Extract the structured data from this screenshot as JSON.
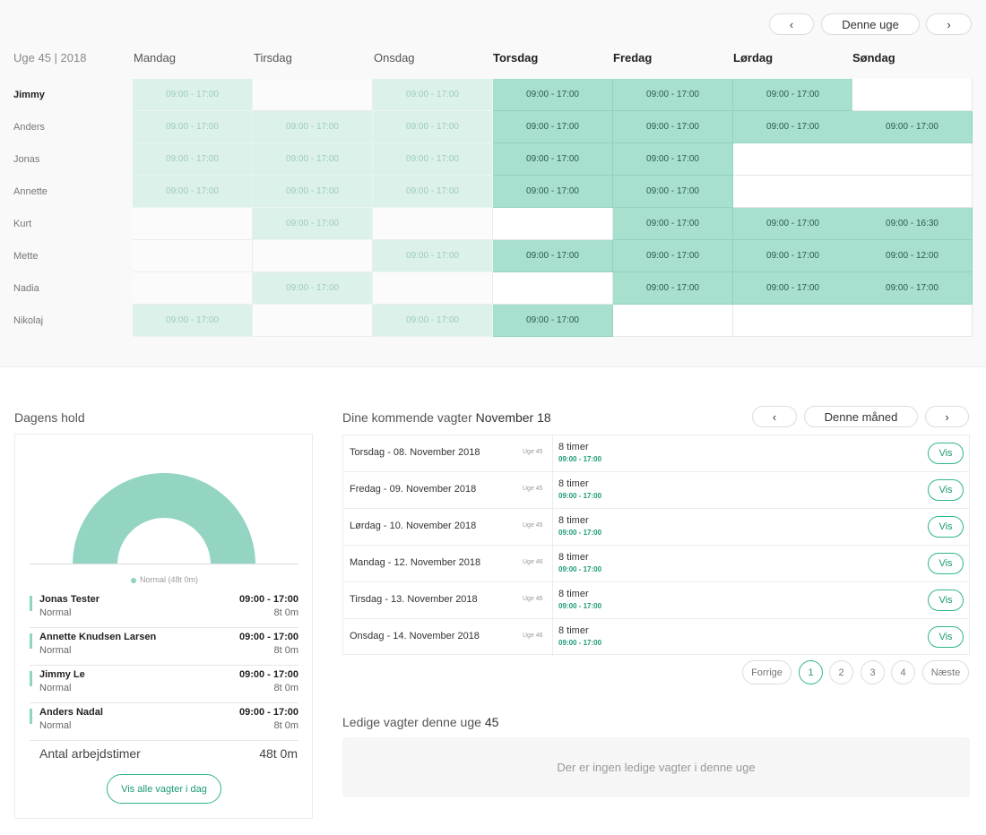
{
  "week_nav": {
    "prev": "‹",
    "current": "Denne uge",
    "next": "›"
  },
  "week_label": "Uge 45 | 2018",
  "days": [
    {
      "label": "Mandag",
      "bold": false
    },
    {
      "label": "Tirsdag",
      "bold": false
    },
    {
      "label": "Onsdag",
      "bold": false
    },
    {
      "label": "Torsdag",
      "bold": true
    },
    {
      "label": "Fredag",
      "bold": true
    },
    {
      "label": "Lørdag",
      "bold": true
    },
    {
      "label": "Søndag",
      "bold": true
    }
  ],
  "schedule": [
    {
      "name": "Jimmy",
      "bold": true,
      "shifts": [
        "09:00 - 17:00",
        "",
        "09:00 - 17:00",
        "09:00 - 17:00",
        "09:00 - 17:00",
        "09:00 - 17:00",
        ""
      ]
    },
    {
      "name": "Anders",
      "bold": false,
      "shifts": [
        "09:00 - 17:00",
        "09:00 - 17:00",
        "09:00 - 17:00",
        "09:00 - 17:00",
        "09:00 - 17:00",
        "09:00 - 17:00",
        "09:00 - 17:00"
      ]
    },
    {
      "name": "Jonas",
      "bold": false,
      "shifts": [
        "09:00 - 17:00",
        "09:00 - 17:00",
        "09:00 - 17:00",
        "09:00 - 17:00",
        "09:00 - 17:00",
        "",
        ""
      ]
    },
    {
      "name": "Annette",
      "bold": false,
      "shifts": [
        "09:00 - 17:00",
        "09:00 - 17:00",
        "09:00 - 17:00",
        "09:00 - 17:00",
        "09:00 - 17:00",
        "",
        ""
      ]
    },
    {
      "name": "Kurt",
      "bold": false,
      "shifts": [
        "",
        "09:00 - 17:00",
        "",
        "",
        "09:00 - 17:00",
        "09:00 - 17:00",
        "09:00 - 16:30"
      ]
    },
    {
      "name": "Mette",
      "bold": false,
      "shifts": [
        "",
        "",
        "09:00 - 17:00",
        "09:00 - 17:00",
        "09:00 - 17:00",
        "09:00 - 17:00",
        "09:00 - 12:00"
      ]
    },
    {
      "name": "Nadia",
      "bold": false,
      "shifts": [
        "",
        "09:00 - 17:00",
        "",
        "",
        "09:00 - 17:00",
        "09:00 - 17:00",
        "09:00 - 17:00"
      ]
    },
    {
      "name": "Nikolaj",
      "bold": false,
      "shifts": [
        "09:00 - 17:00",
        "",
        "09:00 - 17:00",
        "09:00 - 17:00",
        "",
        "",
        ""
      ]
    }
  ],
  "team": {
    "title": "Dagens hold",
    "legend": "Normal (48t 0m)",
    "staff": [
      {
        "name": "Jonas Tester",
        "role": "Normal",
        "time": "09:00 - 17:00",
        "hours": "8t 0m"
      },
      {
        "name": "Annette Knudsen Larsen",
        "role": "Normal",
        "time": "09:00 - 17:00",
        "hours": "8t 0m"
      },
      {
        "name": "Jimmy Le",
        "role": "Normal",
        "time": "09:00 - 17:00",
        "hours": "8t 0m"
      },
      {
        "name": "Anders Nadal",
        "role": "Normal",
        "time": "09:00 - 17:00",
        "hours": "8t 0m"
      }
    ],
    "total_label": "Antal arbejdstimer",
    "total_value": "48t 0m",
    "button": "Vis alle vagter i dag",
    "color": "#93d5c2"
  },
  "upcoming": {
    "title_prefix": "Dine kommende vagter",
    "title_month": "November 18",
    "nav": {
      "prev": "‹",
      "current": "Denne måned",
      "next": "›"
    },
    "rows": [
      {
        "date": "Torsdag - 08. November 2018",
        "week": "Uge 45",
        "hours": "8 timer",
        "time": "09:00 - 17:00",
        "action": "Vis"
      },
      {
        "date": "Fredag - 09. November 2018",
        "week": "Uge 45",
        "hours": "8 timer",
        "time": "09:00 - 17:00",
        "action": "Vis"
      },
      {
        "date": "Lørdag - 10. November 2018",
        "week": "Uge 45",
        "hours": "8 timer",
        "time": "09:00 - 17:00",
        "action": "Vis"
      },
      {
        "date": "Mandag - 12. November 2018",
        "week": "Uge 46",
        "hours": "8 timer",
        "time": "09:00 - 17:00",
        "action": "Vis"
      },
      {
        "date": "Tirsdag - 13. November 2018",
        "week": "Uge 46",
        "hours": "8 timer",
        "time": "09:00 - 17:00",
        "action": "Vis"
      },
      {
        "date": "Onsdag - 14. November 2018",
        "week": "Uge 46",
        "hours": "8 timer",
        "time": "09:00 - 17:00",
        "action": "Vis"
      }
    ],
    "pagination": {
      "prev": "Forrige",
      "pages": [
        "1",
        "2",
        "3",
        "4"
      ],
      "active": "1",
      "next": "Næste"
    }
  },
  "available": {
    "title_prefix": "Ledige vagter denne uge",
    "title_week": "45",
    "empty_text": "Der er ingen ledige vagter i denne uge"
  }
}
